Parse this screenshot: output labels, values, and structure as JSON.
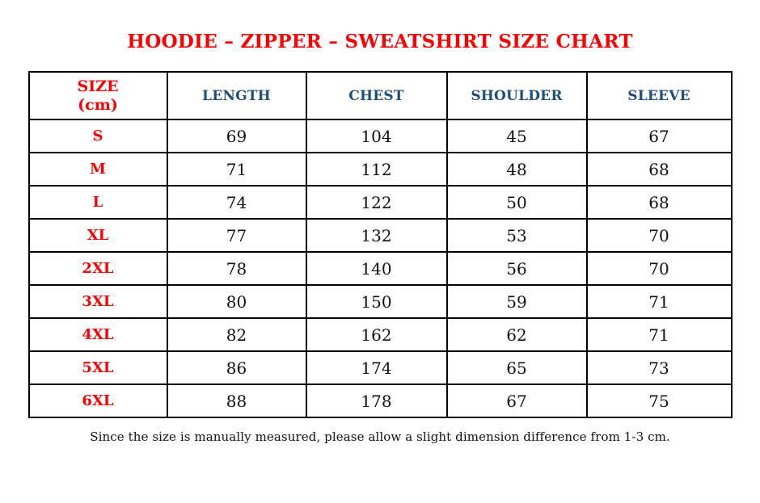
{
  "top_dot": ".",
  "title": "HOODIE – ZIPPER – SWEATSHIRT SIZE CHART",
  "table": {
    "header": {
      "size_label": "SIZE",
      "size_unit": "(cm)",
      "columns": [
        "LENGTH",
        "CHEST",
        "SHOULDER",
        "SLEEVE"
      ]
    },
    "rows": [
      {
        "size": "S",
        "length": "69",
        "chest": "104",
        "shoulder": "45",
        "sleeve": "67"
      },
      {
        "size": "M",
        "length": "71",
        "chest": "112",
        "shoulder": "48",
        "sleeve": "68"
      },
      {
        "size": "L",
        "length": "74",
        "chest": "122",
        "shoulder": "50",
        "sleeve": "68"
      },
      {
        "size": "XL",
        "length": "77",
        "chest": "132",
        "shoulder": "53",
        "sleeve": "70"
      },
      {
        "size": "2XL",
        "length": "78",
        "chest": "140",
        "shoulder": "56",
        "sleeve": "70"
      },
      {
        "size": "3XL",
        "length": "80",
        "chest": "150",
        "shoulder": "59",
        "sleeve": "71"
      },
      {
        "size": "4XL",
        "length": "82",
        "chest": "162",
        "shoulder": "62",
        "sleeve": "71"
      },
      {
        "size": "5XL",
        "length": "86",
        "chest": "174",
        "shoulder": "65",
        "sleeve": "73"
      },
      {
        "size": "6XL",
        "length": "88",
        "chest": "178",
        "shoulder": "67",
        "sleeve": "75"
      }
    ]
  },
  "footer_note": "Since the size is manually measured, please allow a slight dimension difference from 1-3 cm.",
  "colors": {
    "title_red": "#ff0000",
    "size_label_red": "#ff0000",
    "header_blue": "#1f4e79",
    "body_text": "#111111",
    "border": "#000000",
    "background": "#ffffff"
  }
}
